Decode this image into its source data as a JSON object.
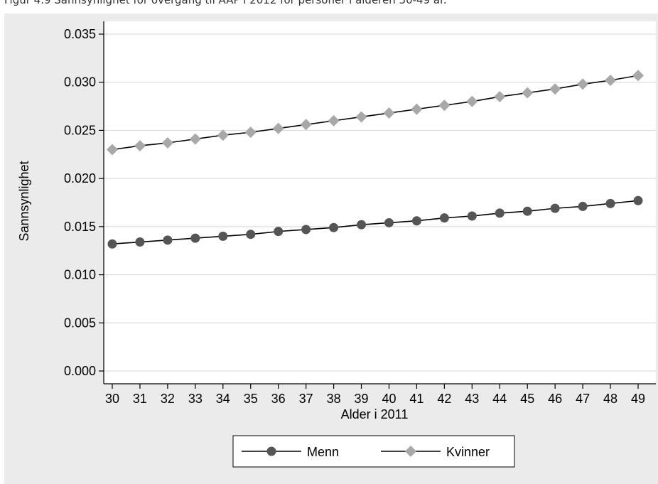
{
  "caption": "Figur 4.9 Sannsynlighet for overgang til AAP i 2012 for personer i alderen 30-49 år.",
  "chart_data": {
    "type": "line",
    "xlabel": "Alder i 2011",
    "ylabel": "Sannsynlighet",
    "x": [
      30,
      31,
      32,
      33,
      34,
      35,
      36,
      37,
      38,
      39,
      40,
      41,
      42,
      43,
      44,
      45,
      46,
      47,
      48,
      49
    ],
    "ylim": [
      0,
      0.035
    ],
    "yticks": [
      "0.000",
      "0.005",
      "0.010",
      "0.015",
      "0.020",
      "0.025",
      "0.030",
      "0.035"
    ],
    "grid": true,
    "legend_position": "bottom",
    "series": [
      {
        "name": "Menn",
        "marker": "circle",
        "marker_color": "#555555",
        "values": [
          0.0132,
          0.0134,
          0.0136,
          0.0138,
          0.014,
          0.0142,
          0.0145,
          0.0147,
          0.0149,
          0.0152,
          0.0154,
          0.0156,
          0.0159,
          0.0161,
          0.0164,
          0.0166,
          0.0169,
          0.0171,
          0.0174,
          0.0177
        ]
      },
      {
        "name": "Kvinner",
        "marker": "diamond",
        "marker_color": "#a8a8a8",
        "values": [
          0.023,
          0.0234,
          0.0237,
          0.0241,
          0.0245,
          0.0248,
          0.0252,
          0.0256,
          0.026,
          0.0264,
          0.0268,
          0.0272,
          0.0276,
          0.028,
          0.0285,
          0.0289,
          0.0293,
          0.0298,
          0.0302,
          0.0307
        ]
      }
    ]
  }
}
